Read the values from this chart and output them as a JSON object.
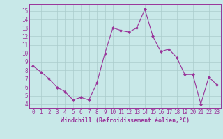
{
  "x": [
    0,
    1,
    2,
    3,
    4,
    5,
    6,
    7,
    8,
    9,
    10,
    11,
    12,
    13,
    14,
    15,
    16,
    17,
    18,
    19,
    20,
    21,
    22,
    23
  ],
  "y": [
    8.5,
    7.8,
    7.0,
    6.0,
    5.5,
    4.5,
    4.8,
    4.5,
    6.5,
    10.0,
    13.0,
    12.7,
    12.5,
    13.0,
    15.2,
    12.0,
    10.2,
    10.5,
    9.5,
    7.5,
    7.5,
    4.0,
    7.2,
    6.3
  ],
  "line_color": "#993399",
  "marker": "D",
  "marker_size": 2,
  "bg_color": "#c8e8e8",
  "grid_color": "#aacccc",
  "ylabel_ticks": [
    4,
    5,
    6,
    7,
    8,
    9,
    10,
    11,
    12,
    13,
    14,
    15
  ],
  "ylim": [
    3.5,
    15.8
  ],
  "xlim": [
    -0.5,
    23.5
  ],
  "xlabel": "Windchill (Refroidissement éolien,°C)",
  "xlabel_color": "#993399",
  "tick_color": "#993399",
  "spine_color": "#993399",
  "xlabel_fontsize": 6.0,
  "tick_fontsize": 5.5
}
